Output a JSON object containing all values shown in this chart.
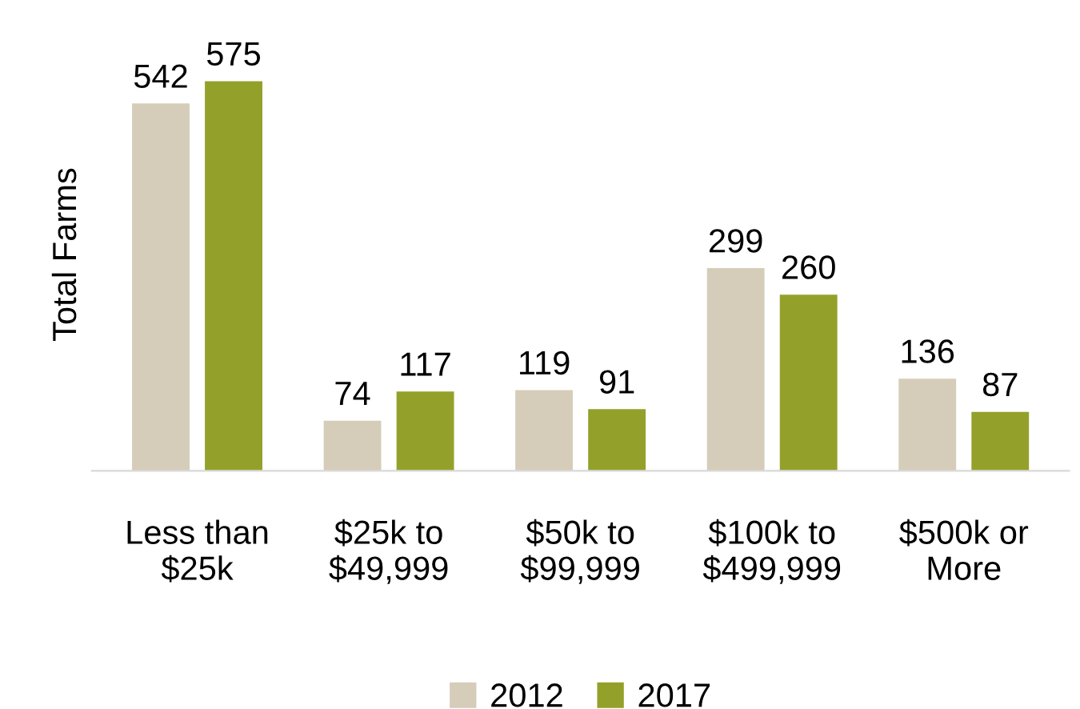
{
  "chart_data": {
    "type": "bar",
    "ylabel": "Total Farms",
    "categories": [
      "Less than\n$25k",
      "$25k to\n$49,999",
      "$50k to\n$99,999",
      "$100k to\n$499,999",
      "$500k or\nMore"
    ],
    "series": [
      {
        "name": "2012",
        "color": "#d5cdb9",
        "values": [
          542,
          74,
          119,
          299,
          136
        ]
      },
      {
        "name": "2017",
        "color": "#93a12a",
        "values": [
          575,
          117,
          91,
          260,
          87
        ]
      }
    ],
    "tick_labels": "x",
    "data_labels": true,
    "legend": "bottom"
  }
}
